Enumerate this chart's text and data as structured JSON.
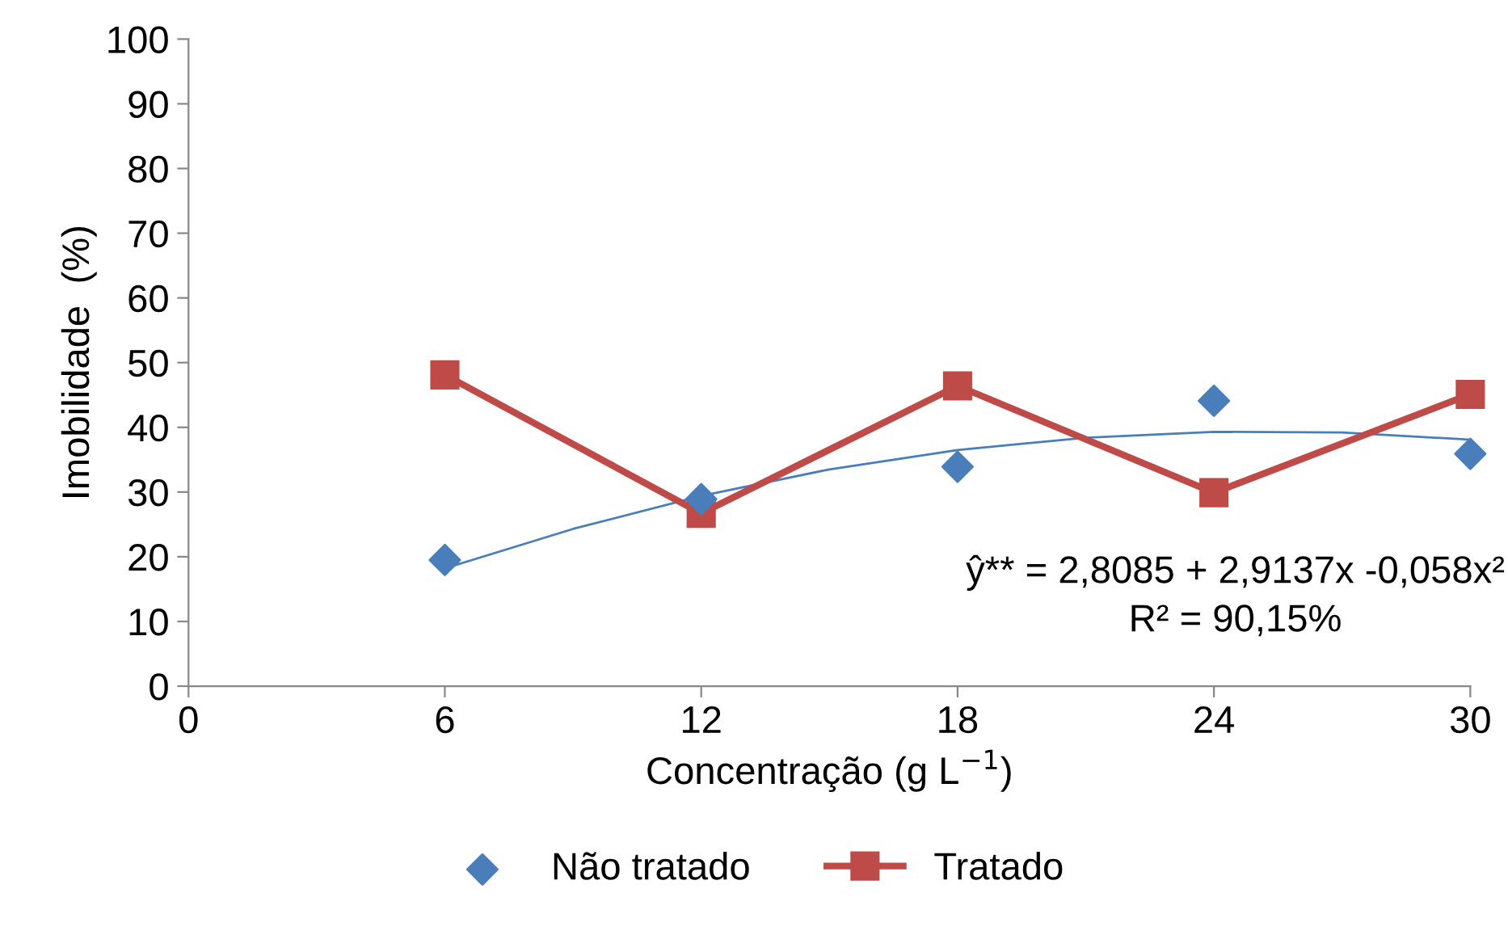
{
  "chart_data": {
    "type": "line",
    "xlabel": "Concentração (g L$^{−1}$)",
    "ylabel": "Imobilidade  (%)",
    "x": [
      6,
      12,
      18,
      24,
      30
    ],
    "series": [
      {
        "name": "Não tratado",
        "type": "scatter",
        "marker": "diamond",
        "color": "#4a7ebb",
        "values": [
          19.5,
          28.9,
          33.9,
          44.1,
          35.9
        ]
      },
      {
        "name": "Tratado",
        "type": "line",
        "marker": "square",
        "color": "#be4b48",
        "values": [
          48.1,
          26.7,
          46.4,
          29.9,
          45.1
        ]
      },
      {
        "marker": "none",
        "color": "#4a7ebb",
        "x": [
          6,
          9,
          12,
          15,
          18,
          21,
          24,
          27,
          30
        ],
        "values": [
          18.2,
          24.3,
          29.4,
          33.5,
          36.5,
          38.4,
          39.3,
          39.2,
          38.1
        ]
      }
    ],
    "xlim": [
      0,
      30
    ],
    "xticks": [
      0,
      6,
      12,
      18,
      24,
      30
    ],
    "ylim": [
      0,
      100
    ],
    "yticks": [
      0,
      10,
      20,
      30,
      40,
      50,
      60,
      70,
      80,
      90,
      100
    ],
    "annotations": [
      "ŷ** = 2,8085 + 2,9137x -0,058x²",
      "R² = 90,15%"
    ],
    "grid": false,
    "legend": "bottom"
  }
}
